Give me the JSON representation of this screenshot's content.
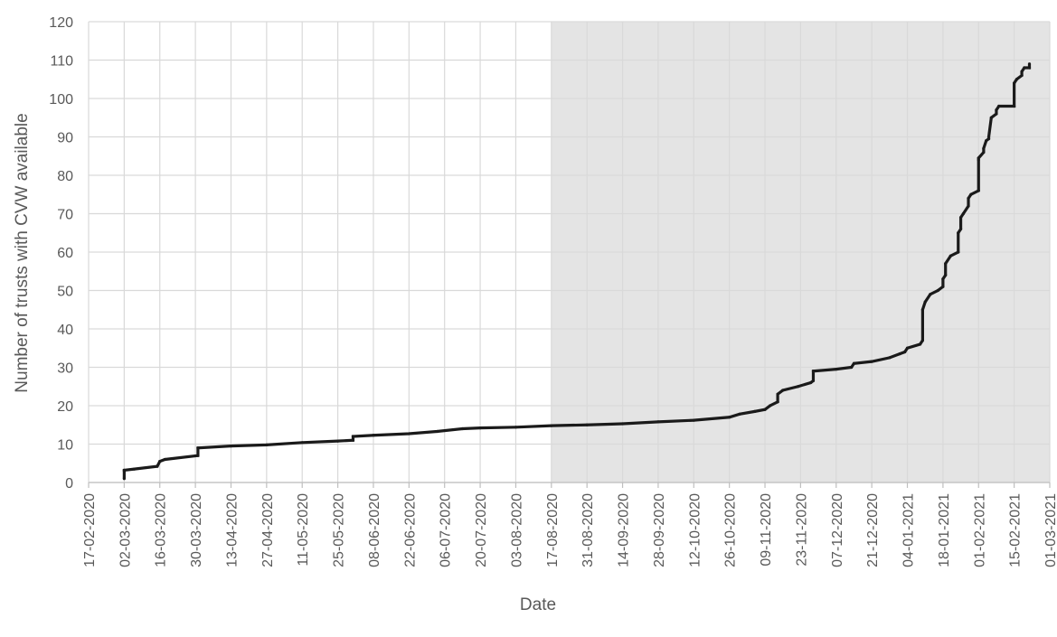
{
  "chart_data": {
    "type": "line",
    "title": "",
    "xlabel": "Date",
    "ylabel": "Number of trusts with CVW available",
    "ylim": [
      0,
      120
    ],
    "yticks": [
      0,
      10,
      20,
      30,
      40,
      50,
      60,
      70,
      80,
      90,
      100,
      110,
      120
    ],
    "xlim": [
      "17-02-2020",
      "01-03-2021"
    ],
    "xticks": [
      "17-02-2020",
      "02-03-2020",
      "16-03-2020",
      "30-03-2020",
      "13-04-2020",
      "27-04-2020",
      "11-05-2020",
      "25-05-2020",
      "08-06-2020",
      "22-06-2020",
      "06-07-2020",
      "20-07-2020",
      "03-08-2020",
      "17-08-2020",
      "31-08-2020",
      "14-09-2020",
      "28-09-2020",
      "12-10-2020",
      "26-10-2020",
      "09-11-2020",
      "23-11-2020",
      "07-12-2020",
      "21-12-2020",
      "04-01-2021",
      "18-01-2021",
      "01-02-2021",
      "15-02-2021",
      "01-03-2021"
    ],
    "grid": "vertical and horizontal",
    "legend": "none",
    "shaded_region": {
      "x_start": "17-08-2020",
      "x_end": "01-03-2021",
      "color": "#e4e4e4"
    },
    "line_color": "#1a1a1a",
    "series": [
      {
        "x": [
          "02-03-2020",
          "02-03-2020",
          "02-03-2020",
          "06-03-2020",
          "15-03-2020",
          "16-03-2020",
          "18-03-2020",
          "31-03-2020",
          "31-03-2020",
          "13-04-2020",
          "27-04-2020",
          "11-05-2020",
          "25-05-2020",
          "31-05-2020",
          "31-05-2020",
          "08-06-2020",
          "22-06-2020",
          "03-07-2020",
          "13-07-2020",
          "20-07-2020",
          "03-08-2020",
          "17-08-2020",
          "31-08-2020",
          "14-09-2020",
          "28-09-2020",
          "12-10-2020",
          "26-10-2020",
          "30-10-2020",
          "05-11-2020",
          "09-11-2020",
          "11-11-2020",
          "14-11-2020",
          "14-11-2020",
          "16-11-2020",
          "22-11-2020",
          "27-11-2020",
          "28-11-2020",
          "28-11-2020",
          "07-12-2020",
          "13-12-2020",
          "14-12-2020",
          "21-12-2020",
          "28-12-2020",
          "01-01-2021",
          "03-01-2021",
          "04-01-2021",
          "09-01-2021",
          "10-01-2021",
          "10-01-2021",
          "11-01-2021",
          "13-01-2021",
          "16-01-2021",
          "18-01-2021",
          "18-01-2021",
          "19-01-2021",
          "19-01-2021",
          "21-01-2021",
          "24-01-2021",
          "24-01-2021",
          "25-01-2021",
          "25-01-2021",
          "26-01-2021",
          "28-01-2021",
          "28-01-2021",
          "29-01-2021",
          "01-02-2021",
          "01-02-2021",
          "01-02-2021",
          "03-02-2021",
          "03-02-2021",
          "04-02-2021",
          "05-02-2021",
          "05-02-2021",
          "06-02-2021",
          "08-02-2021",
          "08-02-2021",
          "09-02-2021",
          "15-02-2021",
          "15-02-2021",
          "16-02-2021",
          "18-02-2021",
          "18-02-2021",
          "19-02-2021",
          "21-02-2021",
          "21-02-2021"
        ],
        "values": [
          1,
          3,
          3.2,
          3.5,
          4.2,
          5.5,
          6,
          7,
          9,
          9.5,
          9.8,
          10.4,
          10.8,
          11,
          12,
          12.3,
          12.7,
          13.3,
          14,
          14.2,
          14.4,
          14.8,
          15,
          15.3,
          15.8,
          16.2,
          17,
          17.8,
          18.5,
          19,
          20,
          21,
          23,
          24,
          25,
          26,
          26.5,
          29,
          29.5,
          30,
          31,
          31.5,
          32.5,
          33.5,
          34,
          35,
          36,
          37,
          45,
          47,
          49,
          50,
          51,
          53,
          54,
          57,
          59,
          60,
          65,
          66,
          69,
          70,
          72,
          74,
          75,
          76,
          84,
          84.5,
          86,
          87,
          89,
          89.5,
          90,
          95,
          96,
          97,
          98,
          98,
          104,
          105,
          106,
          107,
          108,
          108,
          109
        ]
      }
    ]
  }
}
